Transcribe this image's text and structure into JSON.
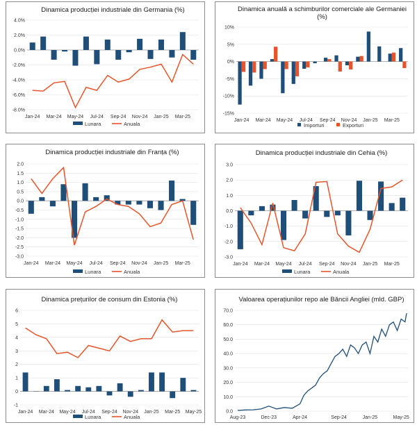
{
  "colors": {
    "monthly": "#1f4e79",
    "annual": "#e8542a",
    "exports": "#e8542a",
    "imports": "#1f4e79",
    "border": "#8c8c8c",
    "grid": "#e0e0e0",
    "axis": "#9a9a9a"
  },
  "chart_data": [
    {
      "id": "c1",
      "type": "bar+line",
      "title": "Dinamica producției industriale din Germania (%)",
      "categories": [
        "Jan-24",
        "Feb-24",
        "Mar-24",
        "Apr-24",
        "May-24",
        "Jun-24",
        "Jul-24",
        "Aug-24",
        "Sep-24",
        "Oct-24",
        "Nov-24",
        "Dec-24",
        "Jan-25",
        "Feb-25",
        "Mar-25",
        "Apr-25"
      ],
      "x_tick_labels": [
        "Jan-24",
        "Mar-24",
        "May-24",
        "Jul-24",
        "Sep-24",
        "Nov-24",
        "Jan-25",
        "Mar-25"
      ],
      "series": [
        {
          "name": "Lunara",
          "kind": "bar",
          "values": [
            1.0,
            1.8,
            -1.3,
            -0.2,
            -2.1,
            1.8,
            -1.9,
            1.4,
            -1.3,
            -0.3,
            1.5,
            -1.2,
            1.4,
            -1.0,
            2.4,
            -1.3
          ]
        },
        {
          "name": "Anuala",
          "kind": "line",
          "values": [
            -5.4,
            -5.5,
            -4.4,
            -4.2,
            -7.7,
            -5.0,
            -5.4,
            -3.4,
            -4.3,
            -3.9,
            -2.6,
            -2.3,
            -1.9,
            -4.3,
            -0.6,
            -1.9
          ]
        }
      ],
      "ylim": [
        -8,
        4
      ],
      "y_ticks": [
        -8,
        -6,
        -4,
        -2,
        0,
        2,
        4
      ],
      "y_tick_labels": [
        "-8.0%",
        "-6.0%",
        "-4.0%",
        "-2.0%",
        "0.0%",
        "2.0%",
        "4.0%"
      ],
      "legend": [
        "Lunara",
        "Anuala"
      ]
    },
    {
      "id": "c2",
      "type": "grouped-bar",
      "title": "Dinamica anuală a schimburilor comerciale ale Germaniei (%)",
      "categories": [
        "Jan-24",
        "Feb-24",
        "Mar-24",
        "Apr-24",
        "May-24",
        "Jun-24",
        "Jul-24",
        "Aug-24",
        "Sep-24",
        "Oct-24",
        "Nov-24",
        "Dec-24",
        "Jan-25",
        "Feb-25",
        "Mar-25",
        "Apr-25"
      ],
      "x_tick_labels": [
        "Jan-24",
        "Mar-24",
        "May-24",
        "Jul-24",
        "Sep-24",
        "Nov-24",
        "Jan-25",
        "Mar-25"
      ],
      "series": [
        {
          "name": "Importuri",
          "kind": "bar",
          "values": [
            -12.5,
            -7.0,
            -5.0,
            0.7,
            -9.2,
            -6.5,
            -2.1,
            -0.5,
            1.1,
            1.8,
            -1.1,
            1.4,
            8.7,
            4.4,
            2.3,
            3.9
          ]
        },
        {
          "name": "Exporturi",
          "kind": "bar",
          "values": [
            -3.0,
            -3.2,
            -2.2,
            4.3,
            -2.2,
            -4.3,
            -1.7,
            0,
            0.7,
            -2.9,
            -2.3,
            1.6,
            0,
            0,
            2.6,
            -1.9
          ]
        }
      ],
      "ylim": [
        -15,
        10
      ],
      "y_ticks": [
        -15,
        -10,
        -5,
        0,
        5,
        10
      ],
      "y_tick_labels": [
        "-15%",
        "-10%",
        "-5%",
        "0%",
        "5%",
        "10%"
      ],
      "legend": [
        "Importuri",
        "Exporturi"
      ]
    },
    {
      "id": "c3",
      "type": "bar+line",
      "title": "Dinamica producției industriale din Franța (%)",
      "categories": [
        "Jan-24",
        "Feb-24",
        "Mar-24",
        "Apr-24",
        "May-24",
        "Jun-24",
        "Jul-24",
        "Aug-24",
        "Sep-24",
        "Oct-24",
        "Nov-24",
        "Dec-24",
        "Jan-25",
        "Feb-25",
        "Mar-25",
        "Apr-25"
      ],
      "x_tick_labels": [
        "Jan-24",
        "Mar-24",
        "May-24",
        "Jul-24",
        "Sep-24",
        "Nov-24",
        "Jan-25",
        "Mar-25"
      ],
      "series": [
        {
          "name": "Lunara",
          "kind": "bar",
          "values": [
            -0.7,
            0.2,
            -0.3,
            0.9,
            -2.0,
            0.95,
            0.2,
            0.3,
            -0.2,
            -0.2,
            -0.2,
            -0.4,
            -0.5,
            1.1,
            0.1,
            -1.3
          ]
        },
        {
          "name": "Anuala",
          "kind": "line",
          "values": [
            1.2,
            0.4,
            1.2,
            1.8,
            -2.4,
            -0.6,
            -0.3,
            0.1,
            -0.2,
            -0.3,
            -0.7,
            -1.4,
            -1.2,
            -0.2,
            0.0,
            -2.1
          ]
        }
      ],
      "ylim": [
        -3,
        2
      ],
      "y_ticks": [
        -3,
        -2.5,
        -2,
        -1.5,
        -1,
        -0.5,
        0,
        0.5,
        1,
        1.5,
        2
      ],
      "y_tick_labels": [
        "-3.0",
        "-2.5",
        "-2.0",
        "-1.5",
        "-1.0",
        "-0.5",
        "0.0",
        "0.5",
        "1.0",
        "1.5",
        "2.0"
      ],
      "legend": [
        "Lunara",
        "Anuala"
      ]
    },
    {
      "id": "c4",
      "type": "bar+line",
      "title": "Dinamica producției industriale din Cehia (%)",
      "categories": [
        "Jan-24",
        "Feb-24",
        "Mar-24",
        "Apr-24",
        "May-24",
        "Jun-24",
        "Jul-24",
        "Aug-24",
        "Sep-24",
        "Oct-24",
        "Nov-24",
        "Dec-24",
        "Jan-25",
        "Feb-25",
        "Mar-25",
        "Apr-25"
      ],
      "x_tick_labels": [
        "Jan-24",
        "Mar-24",
        "May-24",
        "Jul-24",
        "Sep-24",
        "Nov-24",
        "Jan-25",
        "Mar-25"
      ],
      "series": [
        {
          "name": "Lunara",
          "kind": "bar",
          "values": [
            -2.5,
            -0.3,
            0.3,
            0.4,
            -1.9,
            0.7,
            -0.5,
            1.6,
            -0.4,
            -0.3,
            -1.6,
            1.95,
            -0.6,
            1.9,
            0.5,
            0.85
          ]
        },
        {
          "name": "Anuala",
          "kind": "line",
          "values": [
            0.2,
            -0.8,
            -2.2,
            0.5,
            -2.4,
            -2.6,
            -1.5,
            1.85,
            1.9,
            -1.5,
            -2.3,
            -2.7,
            -1.2,
            1.45,
            1.55,
            2.0
          ]
        }
      ],
      "ylim": [
        -3,
        3
      ],
      "y_ticks": [
        -3,
        -2,
        -1,
        0,
        1,
        2,
        3
      ],
      "y_tick_labels": [
        "-3.0",
        "-2.0",
        "-1.0",
        "0.0",
        "1.0",
        "2.0",
        "3.0"
      ],
      "legend": [
        "Lunara",
        "Anuala"
      ]
    },
    {
      "id": "c5",
      "type": "bar+line",
      "title": "Dinamica prețurilor de consum din Estonia (%)",
      "categories": [
        "Jan-24",
        "Feb-24",
        "Mar-24",
        "Apr-24",
        "May-24",
        "Jun-24",
        "Jul-24",
        "Aug-24",
        "Sep-24",
        "Oct-24",
        "Nov-24",
        "Dec-24",
        "Jan-25",
        "Feb-25",
        "Mar-25",
        "Apr-25",
        "May-25"
      ],
      "x_tick_labels": [
        "Jan-24",
        "Mar-24",
        "May-24",
        "Jul-24",
        "Sep-24",
        "Nov-24",
        "Jan-25",
        "Mar-25",
        "May-25"
      ],
      "series": [
        {
          "name": "Lunara",
          "kind": "bar",
          "values": [
            1.4,
            0.0,
            0.4,
            0.9,
            0.1,
            0.4,
            0.3,
            0.4,
            -0.3,
            0.6,
            -0.4,
            0.1,
            1.4,
            1.4,
            -0.5,
            1.0,
            0.1
          ]
        },
        {
          "name": "Anuala",
          "kind": "line",
          "values": [
            4.7,
            4.2,
            3.9,
            2.8,
            2.9,
            2.5,
            3.4,
            3.2,
            3.0,
            4.1,
            3.7,
            3.9,
            3.9,
            5.3,
            4.4,
            4.5,
            4.5
          ]
        }
      ],
      "ylim": [
        -1,
        6
      ],
      "y_ticks": [
        -1,
        0,
        1,
        2,
        3,
        4,
        5,
        6
      ],
      "y_tick_labels": [
        "-1",
        "0",
        "1",
        "2",
        "3",
        "4",
        "5",
        "6"
      ],
      "legend": [
        "Lunara",
        "Anuala"
      ]
    },
    {
      "id": "c6",
      "type": "line",
      "title": "Valoarea operațiunilor repo ale Băncii Angliei (mld. GBP)",
      "x_range_months": [
        0,
        21.7
      ],
      "x_ticks": [
        0,
        4,
        8,
        13,
        17,
        21
      ],
      "x_tick_labels": [
        "Aug-23",
        "Dec-23",
        "Apr-24",
        "Sep-24",
        "Jan-25",
        "May-25"
      ],
      "series": [
        {
          "name": "Repo",
          "kind": "line",
          "x": [
            0,
            1,
            2,
            3,
            4,
            4.5,
            5,
            6,
            7,
            8,
            8.5,
            9,
            10,
            10.5,
            11,
            11.5,
            12,
            12.5,
            13,
            13.5,
            14,
            14.5,
            15,
            15.5,
            16,
            16.5,
            17,
            17.5,
            18,
            18.5,
            19,
            19.5,
            20,
            20.5,
            21,
            21.5,
            21.7
          ],
          "y": [
            0.5,
            0.8,
            0.9,
            1.5,
            3.5,
            2.5,
            1.5,
            2.5,
            2.0,
            5,
            11,
            14,
            18,
            23,
            26,
            28,
            33,
            38,
            40,
            43,
            38,
            46,
            44,
            40,
            46,
            48,
            40,
            52,
            48,
            57,
            52,
            60,
            62,
            56,
            64,
            62,
            68
          ]
        }
      ],
      "ylim": [
        0,
        70
      ],
      "y_ticks": [
        0,
        10,
        20,
        30,
        40,
        50,
        60,
        70
      ],
      "y_tick_labels": [
        "0.0",
        "10.0",
        "20.0",
        "30.0",
        "40.0",
        "50.0",
        "60.0",
        "70.0"
      ]
    }
  ]
}
